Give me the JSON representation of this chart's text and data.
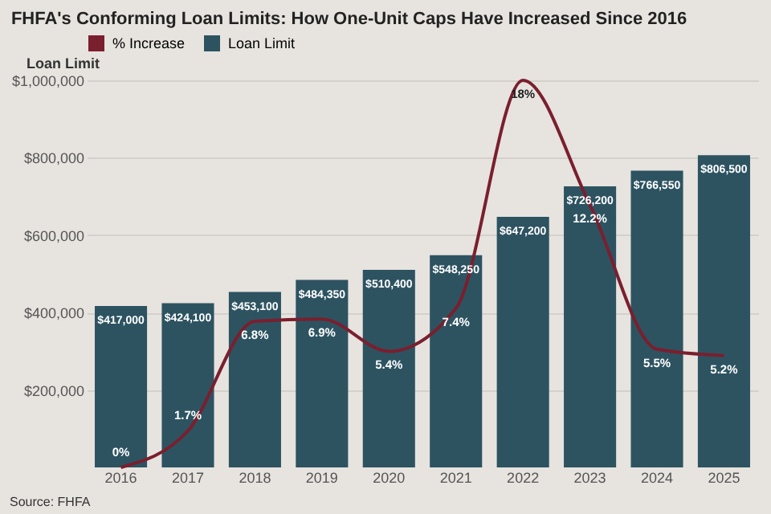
{
  "chart_data": {
    "type": "bar",
    "title": "FHFA's Conforming Loan Limits: How One-Unit Caps Have Increased Since 2016",
    "ylabel": "Loan Limit",
    "categories": [
      "2016",
      "2017",
      "2018",
      "2019",
      "2020",
      "2021",
      "2022",
      "2023",
      "2024",
      "2025"
    ],
    "series": [
      {
        "name": "% Increase",
        "type": "line",
        "axis": "y2",
        "color": "#7a1f2e",
        "values": [
          0,
          1.7,
          6.8,
          6.9,
          5.4,
          7.4,
          18,
          12.2,
          5.5,
          5.2
        ],
        "value_labels": [
          "0%",
          "1.7%",
          "6.8%",
          "6.9%",
          "5.4%",
          "7.4%",
          "18%",
          "12.2%",
          "5.5%",
          "5.2%"
        ]
      },
      {
        "name": "Loan Limit",
        "color": "#2d5361",
        "values": [
          417000,
          424100,
          453100,
          484350,
          510400,
          548250,
          647200,
          726200,
          766550,
          806500
        ],
        "value_labels": [
          "$417,000",
          "$424,100",
          "$453,100",
          "$484,350",
          "$510,400",
          "$548,250",
          "$647,200",
          "$726,200",
          "$766,550",
          "$806,500"
        ]
      }
    ],
    "ylim": [
      0,
      1000000
    ],
    "yticks": [
      {
        "value": 200000,
        "label": "$200,000"
      },
      {
        "value": 400000,
        "label": "$400,000"
      },
      {
        "value": 600000,
        "label": "$600,000"
      },
      {
        "value": 800000,
        "label": "$800,000"
      },
      {
        "value": 1000000,
        "label": "$1,000,000"
      }
    ],
    "y2lim": [
      0,
      18
    ],
    "grid": "y",
    "legend": "top",
    "annotations": [
      "Source: FHFA"
    ]
  }
}
